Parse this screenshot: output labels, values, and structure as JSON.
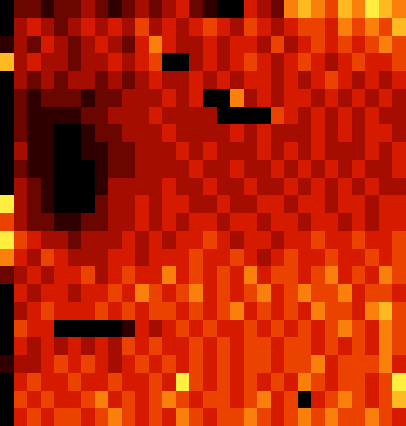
{
  "chart_data": {
    "type": "heatmap",
    "tick_labels": false,
    "cells": [
      [
        0,
        2,
        2,
        1,
        2,
        2,
        3,
        2,
        1,
        2,
        3,
        2,
        3,
        4,
        2,
        1,
        0,
        0,
        4,
        3,
        2,
        6,
        7,
        6,
        5,
        7,
        6,
        8,
        7,
        6
      ],
      [
        0,
        3,
        4,
        3,
        2,
        3,
        4,
        3,
        4,
        3,
        5,
        3,
        4,
        3,
        4,
        5,
        4,
        3,
        5,
        4,
        3,
        4,
        5,
        5,
        4,
        6,
        5,
        6,
        5,
        7
      ],
      [
        1,
        3,
        2,
        4,
        3,
        2,
        3,
        4,
        3,
        2,
        4,
        6,
        4,
        3,
        3,
        4,
        3,
        4,
        4,
        3,
        5,
        3,
        4,
        5,
        4,
        5,
        4,
        5,
        6,
        5
      ],
      [
        7,
        3,
        4,
        3,
        3,
        2,
        3,
        3,
        4,
        3,
        4,
        5,
        0,
        0,
        3,
        4,
        3,
        4,
        5,
        4,
        3,
        4,
        5,
        4,
        3,
        4,
        5,
        4,
        4,
        5
      ],
      [
        0,
        3,
        2,
        3,
        2,
        3,
        3,
        2,
        3,
        2,
        3,
        4,
        3,
        3,
        4,
        3,
        4,
        3,
        4,
        4,
        3,
        4,
        3,
        4,
        5,
        4,
        3,
        4,
        3,
        4
      ],
      [
        0,
        2,
        1,
        2,
        2,
        2,
        1,
        2,
        2,
        3,
        3,
        3,
        4,
        3,
        4,
        0,
        0,
        6,
        3,
        4,
        3,
        4,
        4,
        3,
        4,
        3,
        4,
        3,
        4,
        3
      ],
      [
        0,
        2,
        1,
        1,
        1,
        1,
        2,
        2,
        3,
        3,
        3,
        4,
        3,
        3,
        3,
        3,
        0,
        0,
        0,
        0,
        5,
        4,
        3,
        4,
        3,
        4,
        3,
        4,
        3,
        3
      ],
      [
        0,
        2,
        1,
        1,
        0,
        0,
        1,
        2,
        2,
        3,
        3,
        3,
        4,
        3,
        3,
        3,
        3,
        4,
        3,
        4,
        3,
        3,
        3,
        4,
        3,
        4,
        3,
        4,
        4,
        3
      ],
      [
        0,
        3,
        1,
        1,
        0,
        0,
        1,
        1,
        2,
        2,
        3,
        3,
        3,
        4,
        3,
        4,
        3,
        3,
        3,
        4,
        3,
        4,
        3,
        4,
        3,
        3,
        3,
        4,
        3,
        4
      ],
      [
        0,
        2,
        1,
        1,
        0,
        0,
        0,
        1,
        2,
        2,
        3,
        3,
        3,
        3,
        4,
        3,
        3,
        4,
        3,
        3,
        4,
        3,
        4,
        3,
        4,
        3,
        4,
        3,
        3,
        4
      ],
      [
        0,
        3,
        2,
        1,
        0,
        0,
        0,
        1,
        3,
        3,
        3,
        3,
        4,
        3,
        3,
        4,
        3,
        3,
        4,
        3,
        3,
        4,
        3,
        4,
        3,
        4,
        3,
        4,
        3,
        3
      ],
      [
        8,
        3,
        2,
        1,
        0,
        0,
        0,
        2,
        3,
        3,
        4,
        3,
        4,
        4,
        3,
        3,
        4,
        3,
        3,
        4,
        4,
        3,
        4,
        4,
        3,
        4,
        4,
        3,
        4,
        4
      ],
      [
        5,
        3,
        2,
        2,
        1,
        1,
        2,
        2,
        3,
        3,
        4,
        3,
        4,
        3,
        4,
        4,
        3,
        4,
        4,
        3,
        4,
        4,
        3,
        4,
        4,
        3,
        4,
        3,
        4,
        4
      ],
      [
        8,
        5,
        4,
        3,
        3,
        2,
        3,
        3,
        3,
        4,
        3,
        4,
        3,
        4,
        4,
        5,
        4,
        3,
        4,
        4,
        3,
        4,
        4,
        5,
        4,
        4,
        5,
        4,
        4,
        5
      ],
      [
        6,
        4,
        3,
        5,
        4,
        3,
        3,
        3,
        4,
        4,
        3,
        4,
        4,
        4,
        5,
        4,
        4,
        5,
        4,
        3,
        4,
        5,
        4,
        4,
        5,
        4,
        4,
        5,
        4,
        5
      ],
      [
        2,
        3,
        4,
        3,
        4,
        4,
        5,
        3,
        4,
        5,
        4,
        4,
        6,
        4,
        5,
        4,
        5,
        4,
        6,
        4,
        5,
        5,
        4,
        5,
        6,
        4,
        5,
        4,
        6,
        5
      ],
      [
        0,
        4,
        3,
        4,
        4,
        3,
        4,
        4,
        5,
        4,
        6,
        5,
        4,
        5,
        6,
        4,
        5,
        4,
        5,
        6,
        4,
        5,
        6,
        5,
        5,
        6,
        4,
        5,
        5,
        4
      ],
      [
        0,
        3,
        4,
        5,
        4,
        4,
        4,
        5,
        4,
        5,
        4,
        5,
        5,
        4,
        5,
        4,
        5,
        6,
        4,
        5,
        4,
        5,
        4,
        6,
        5,
        5,
        4,
        6,
        7,
        5
      ],
      [
        0,
        5,
        4,
        4,
        0,
        0,
        0,
        0,
        0,
        1,
        4,
        3,
        4,
        5,
        4,
        5,
        4,
        4,
        5,
        4,
        5,
        4,
        5,
        4,
        5,
        6,
        5,
        4,
        6,
        5
      ],
      [
        0,
        4,
        3,
        4,
        3,
        4,
        3,
        4,
        3,
        5,
        4,
        5,
        4,
        4,
        5,
        4,
        5,
        4,
        5,
        5,
        4,
        5,
        5,
        4,
        5,
        4,
        5,
        4,
        6,
        5
      ],
      [
        1,
        3,
        3,
        4,
        5,
        4,
        5,
        4,
        3,
        4,
        5,
        4,
        5,
        4,
        5,
        4,
        5,
        4,
        5,
        5,
        4,
        5,
        5,
        6,
        4,
        5,
        5,
        5,
        6,
        4
      ],
      [
        0,
        4,
        5,
        4,
        4,
        5,
        4,
        4,
        5,
        4,
        4,
        5,
        4,
        8,
        5,
        4,
        5,
        4,
        5,
        4,
        5,
        4,
        6,
        5,
        4,
        5,
        5,
        4,
        5,
        8
      ],
      [
        0,
        5,
        4,
        5,
        4,
        4,
        5,
        6,
        4,
        5,
        4,
        5,
        6,
        5,
        4,
        5,
        5,
        4,
        5,
        6,
        4,
        5,
        0,
        4,
        5,
        6,
        5,
        4,
        5,
        7
      ],
      [
        0,
        4,
        5,
        4,
        5,
        5,
        4,
        5,
        6,
        5,
        4,
        5,
        4,
        6,
        5,
        4,
        5,
        5,
        6,
        5,
        4,
        5,
        6,
        5,
        6,
        5,
        5,
        6,
        5,
        4
      ]
    ]
  }
}
